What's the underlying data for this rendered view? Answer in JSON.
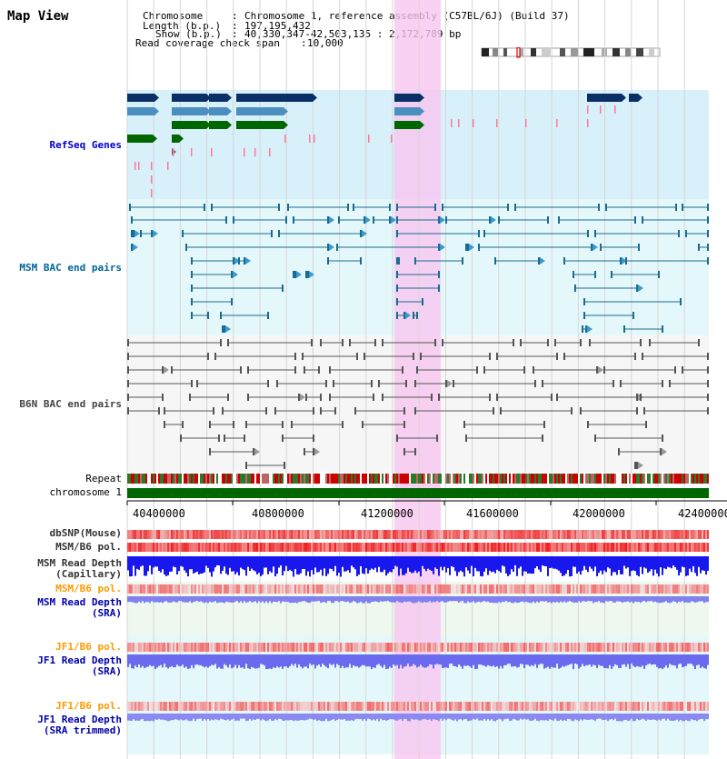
{
  "view_title": "Map View",
  "header": {
    "chromosome_label": "Chromosome",
    "chromosome_value": "Chromosome 1, reference assembly (C57BL/6J) (Build 37)",
    "length_label": "Length (b.p.)",
    "length_value": "197,195,432",
    "show_label": "Show (b.p.)",
    "show_value": "40,330,347-42,503,135 : 2,172,789 bp",
    "coverage_label": "Read coverage check span",
    "coverage_value": "10,000"
  },
  "tracks": {
    "refseq": "RefSeq Genes",
    "msm_bac": "MSM BAC end pairs",
    "b6n_bac": "B6N BAC end pairs",
    "repeat": "Repeat",
    "chromosome": "chromosome 1",
    "dbsnp": "dbSNP(Mouse)",
    "msm_b6_pol_1": "MSM/B6 pol.",
    "msm_depth_cap": "MSM Read Depth",
    "msm_depth_cap_sub": "(Capillary)",
    "msm_b6_pol_2": "MSM/B6 pol.",
    "msm_depth_sra": "MSM Read Depth",
    "msm_depth_sra_sub": "(SRA)",
    "jf1_b6_pol_1": "JF1/B6 pol.",
    "jf1_depth_sra": "JF1 Read Depth",
    "jf1_depth_sra_sub": "(SRA)",
    "jf1_b6_pol_2": "JF1/B6 pol.",
    "jf1_depth_trim": "JF1 Read Depth",
    "jf1_depth_trim_sub": "(SRA trimmed)"
  },
  "axis_ticks": [
    "40400000",
    "40800000",
    "41200000",
    "41600000",
    "42000000",
    "42400000"
  ],
  "colors": {
    "refseq_label": "#0000cc",
    "msm_label": "#006699",
    "b6n_label": "#444444",
    "pol_label": "#ff9900",
    "depth_label": "#0000aa",
    "highlight": "#f7c6f0",
    "refseq_bg": "#d8f0fa",
    "msm_bg": "#e4f8fb",
    "gene_dark": "#0a2f66",
    "gene_mid": "#4a8fbf",
    "gene_green": "#006600",
    "chromosome_bar": "#006600"
  }
}
